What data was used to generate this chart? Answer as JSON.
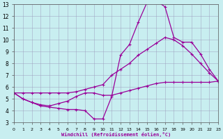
{
  "xlabel": "Windchill (Refroidissement éolien,°C)",
  "background_color": "#c8eef0",
  "grid_color": "#9999bb",
  "line_color": "#990099",
  "xmin": 0,
  "xmax": 23,
  "ymin": 3,
  "ymax": 13,
  "yticks": [
    3,
    4,
    5,
    6,
    7,
    8,
    9,
    10,
    11,
    12,
    13
  ],
  "xticks": [
    0,
    1,
    2,
    3,
    4,
    5,
    6,
    7,
    8,
    9,
    10,
    11,
    12,
    13,
    14,
    15,
    16,
    17,
    18,
    19,
    20,
    21,
    22,
    23
  ],
  "line1_x": [
    0,
    1,
    2,
    3,
    4,
    5,
    6,
    7,
    8,
    9,
    10,
    11,
    12,
    13,
    14,
    15,
    16,
    17,
    18,
    19,
    20,
    21,
    22,
    23
  ],
  "line1_y": [
    5.5,
    5.0,
    4.7,
    4.4,
    4.3,
    4.2,
    4.1,
    4.1,
    4.0,
    3.3,
    3.3,
    5.2,
    8.7,
    9.6,
    11.5,
    13.2,
    13.3,
    12.8,
    10.2,
    9.8,
    9.8,
    8.8,
    7.5,
    6.5
  ],
  "line2_x": [
    0,
    1,
    2,
    3,
    4,
    5,
    6,
    7,
    8,
    9,
    10,
    11,
    12,
    13,
    14,
    15,
    16,
    17,
    18,
    19,
    20,
    21,
    22,
    23
  ],
  "line2_y": [
    5.5,
    5.5,
    5.5,
    5.5,
    5.5,
    5.5,
    5.5,
    5.6,
    5.8,
    6.0,
    6.2,
    7.0,
    7.5,
    8.0,
    8.7,
    9.2,
    9.7,
    10.2,
    10.0,
    9.5,
    8.8,
    8.0,
    7.2,
    6.5
  ],
  "line3_x": [
    0,
    1,
    2,
    3,
    4,
    5,
    6,
    7,
    8,
    9,
    10,
    11,
    12,
    13,
    14,
    15,
    16,
    17,
    18,
    19,
    20,
    21,
    22,
    23
  ],
  "line3_y": [
    5.5,
    5.0,
    4.7,
    4.5,
    4.4,
    4.6,
    4.8,
    5.2,
    5.5,
    5.5,
    5.3,
    5.3,
    5.5,
    5.7,
    5.9,
    6.1,
    6.3,
    6.4,
    6.4,
    6.4,
    6.4,
    6.4,
    6.4,
    6.5
  ]
}
